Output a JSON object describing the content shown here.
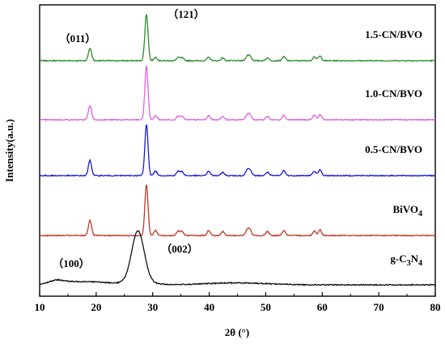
{
  "chart_data": {
    "type": "line",
    "xlabel": "2θ (°)",
    "ylabel": "Intensity(a.u.)",
    "xlim": [
      10,
      80
    ],
    "xticks": [
      "10",
      "20",
      "30",
      "40",
      "50",
      "60",
      "70",
      "80"
    ],
    "yticks_shown": false,
    "grid": false,
    "legend": "none",
    "series": [
      {
        "name": "1.5-CN/BVO",
        "color": "#2e8b2e",
        "label_prefix": "1.5-CN/BVO",
        "label_sub": "",
        "label_suffix": "",
        "offset": 4,
        "peaks": [
          [
            18.9,
            0.22
          ],
          [
            28.9,
            0.82
          ],
          [
            30.5,
            0.06
          ],
          [
            34.5,
            0.06
          ],
          [
            35.2,
            0.05
          ],
          [
            39.9,
            0.06
          ],
          [
            42.4,
            0.05
          ],
          [
            46.7,
            0.07
          ],
          [
            47.2,
            0.08
          ],
          [
            50.3,
            0.05
          ],
          [
            53.2,
            0.07
          ],
          [
            58.6,
            0.07
          ],
          [
            59.6,
            0.08
          ]
        ]
      },
      {
        "name": "1.0-CN/BVO",
        "color": "#e060e0",
        "label_prefix": "1.0-CN/BVO",
        "label_sub": "",
        "label_suffix": "",
        "offset": 3,
        "peaks": [
          [
            18.9,
            0.25
          ],
          [
            28.9,
            0.95
          ],
          [
            30.5,
            0.07
          ],
          [
            34.5,
            0.07
          ],
          [
            35.2,
            0.06
          ],
          [
            39.9,
            0.07
          ],
          [
            42.4,
            0.06
          ],
          [
            46.7,
            0.08
          ],
          [
            47.2,
            0.09
          ],
          [
            50.3,
            0.06
          ],
          [
            53.2,
            0.08
          ],
          [
            58.6,
            0.08
          ],
          [
            59.6,
            0.09
          ]
        ]
      },
      {
        "name": "0.5-CN/BVO",
        "color": "#1a1ad8",
        "label_prefix": "0.5-CN/BVO",
        "label_sub": "",
        "label_suffix": "",
        "offset": 2,
        "peaks": [
          [
            18.9,
            0.27
          ],
          [
            28.9,
            0.9
          ],
          [
            30.5,
            0.08
          ],
          [
            34.5,
            0.08
          ],
          [
            35.2,
            0.07
          ],
          [
            39.9,
            0.08
          ],
          [
            42.4,
            0.06
          ],
          [
            46.7,
            0.09
          ],
          [
            47.2,
            0.1
          ],
          [
            50.3,
            0.06
          ],
          [
            53.2,
            0.09
          ],
          [
            58.6,
            0.08
          ],
          [
            59.6,
            0.1
          ]
        ]
      },
      {
        "name": "BiVO4",
        "color": "#c0392b",
        "label_prefix": "BiVO",
        "label_sub": "4",
        "label_suffix": "",
        "offset": 1,
        "peaks": [
          [
            18.9,
            0.27
          ],
          [
            28.9,
            0.9
          ],
          [
            30.5,
            0.09
          ],
          [
            34.5,
            0.08
          ],
          [
            35.2,
            0.07
          ],
          [
            39.9,
            0.09
          ],
          [
            42.4,
            0.07
          ],
          [
            46.7,
            0.09
          ],
          [
            47.2,
            0.1
          ],
          [
            50.3,
            0.07
          ],
          [
            53.2,
            0.09
          ],
          [
            58.6,
            0.08
          ],
          [
            59.6,
            0.1
          ]
        ]
      },
      {
        "name": "g-C3N4",
        "color": "#111111",
        "label_prefix": "g-C",
        "label_sub": "3",
        "label_mid": "N",
        "label_sub2": "4",
        "offset": 0,
        "peaks": [
          [
            13.0,
            0.06
          ],
          [
            27.4,
            0.9
          ]
        ]
      }
    ],
    "annotations": [
      {
        "text": "（011）",
        "x": 18.9,
        "series": "1.5-CN/BVO"
      },
      {
        "text": "（121）",
        "x": 28.9,
        "series": "1.5-CN/BVO"
      },
      {
        "text": "（100）",
        "x": 13.0,
        "series": "g-C3N4"
      },
      {
        "text": "（002）",
        "x": 27.4,
        "series": "g-C3N4"
      }
    ]
  }
}
